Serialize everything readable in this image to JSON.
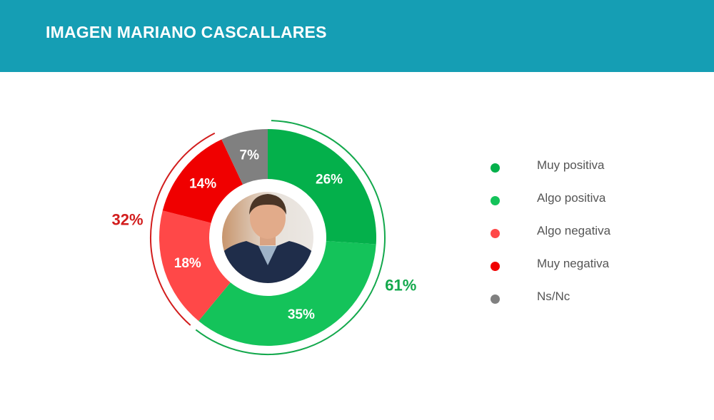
{
  "header": {
    "title": "IMAGEN MARIANO CASCALLARES",
    "background": "#159eb4"
  },
  "portrait": {
    "description_icon": "person-photo-icon"
  },
  "chart_data": {
    "type": "pie",
    "variant": "donut",
    "title": "IMAGEN MARIANO CASCALLARES",
    "categories": [
      "Muy positiva",
      "Algo positiva",
      "Algo negativa",
      "Muy negativa",
      "Ns/Nc"
    ],
    "values": [
      26,
      35,
      18,
      14,
      7
    ],
    "labels": [
      "26%",
      "35%",
      "18%",
      "14%",
      "7%"
    ],
    "colors": [
      "#04b04b",
      "#14c35a",
      "#ff4848",
      "#f00000",
      "#808080"
    ],
    "groups": [
      {
        "name": "positive",
        "members": [
          0,
          1
        ],
        "label": "61%",
        "color": "#13a84c"
      },
      {
        "name": "negative",
        "members": [
          2,
          3
        ],
        "label": "32%",
        "color": "#d21d1d"
      }
    ],
    "legend_position": "right"
  }
}
